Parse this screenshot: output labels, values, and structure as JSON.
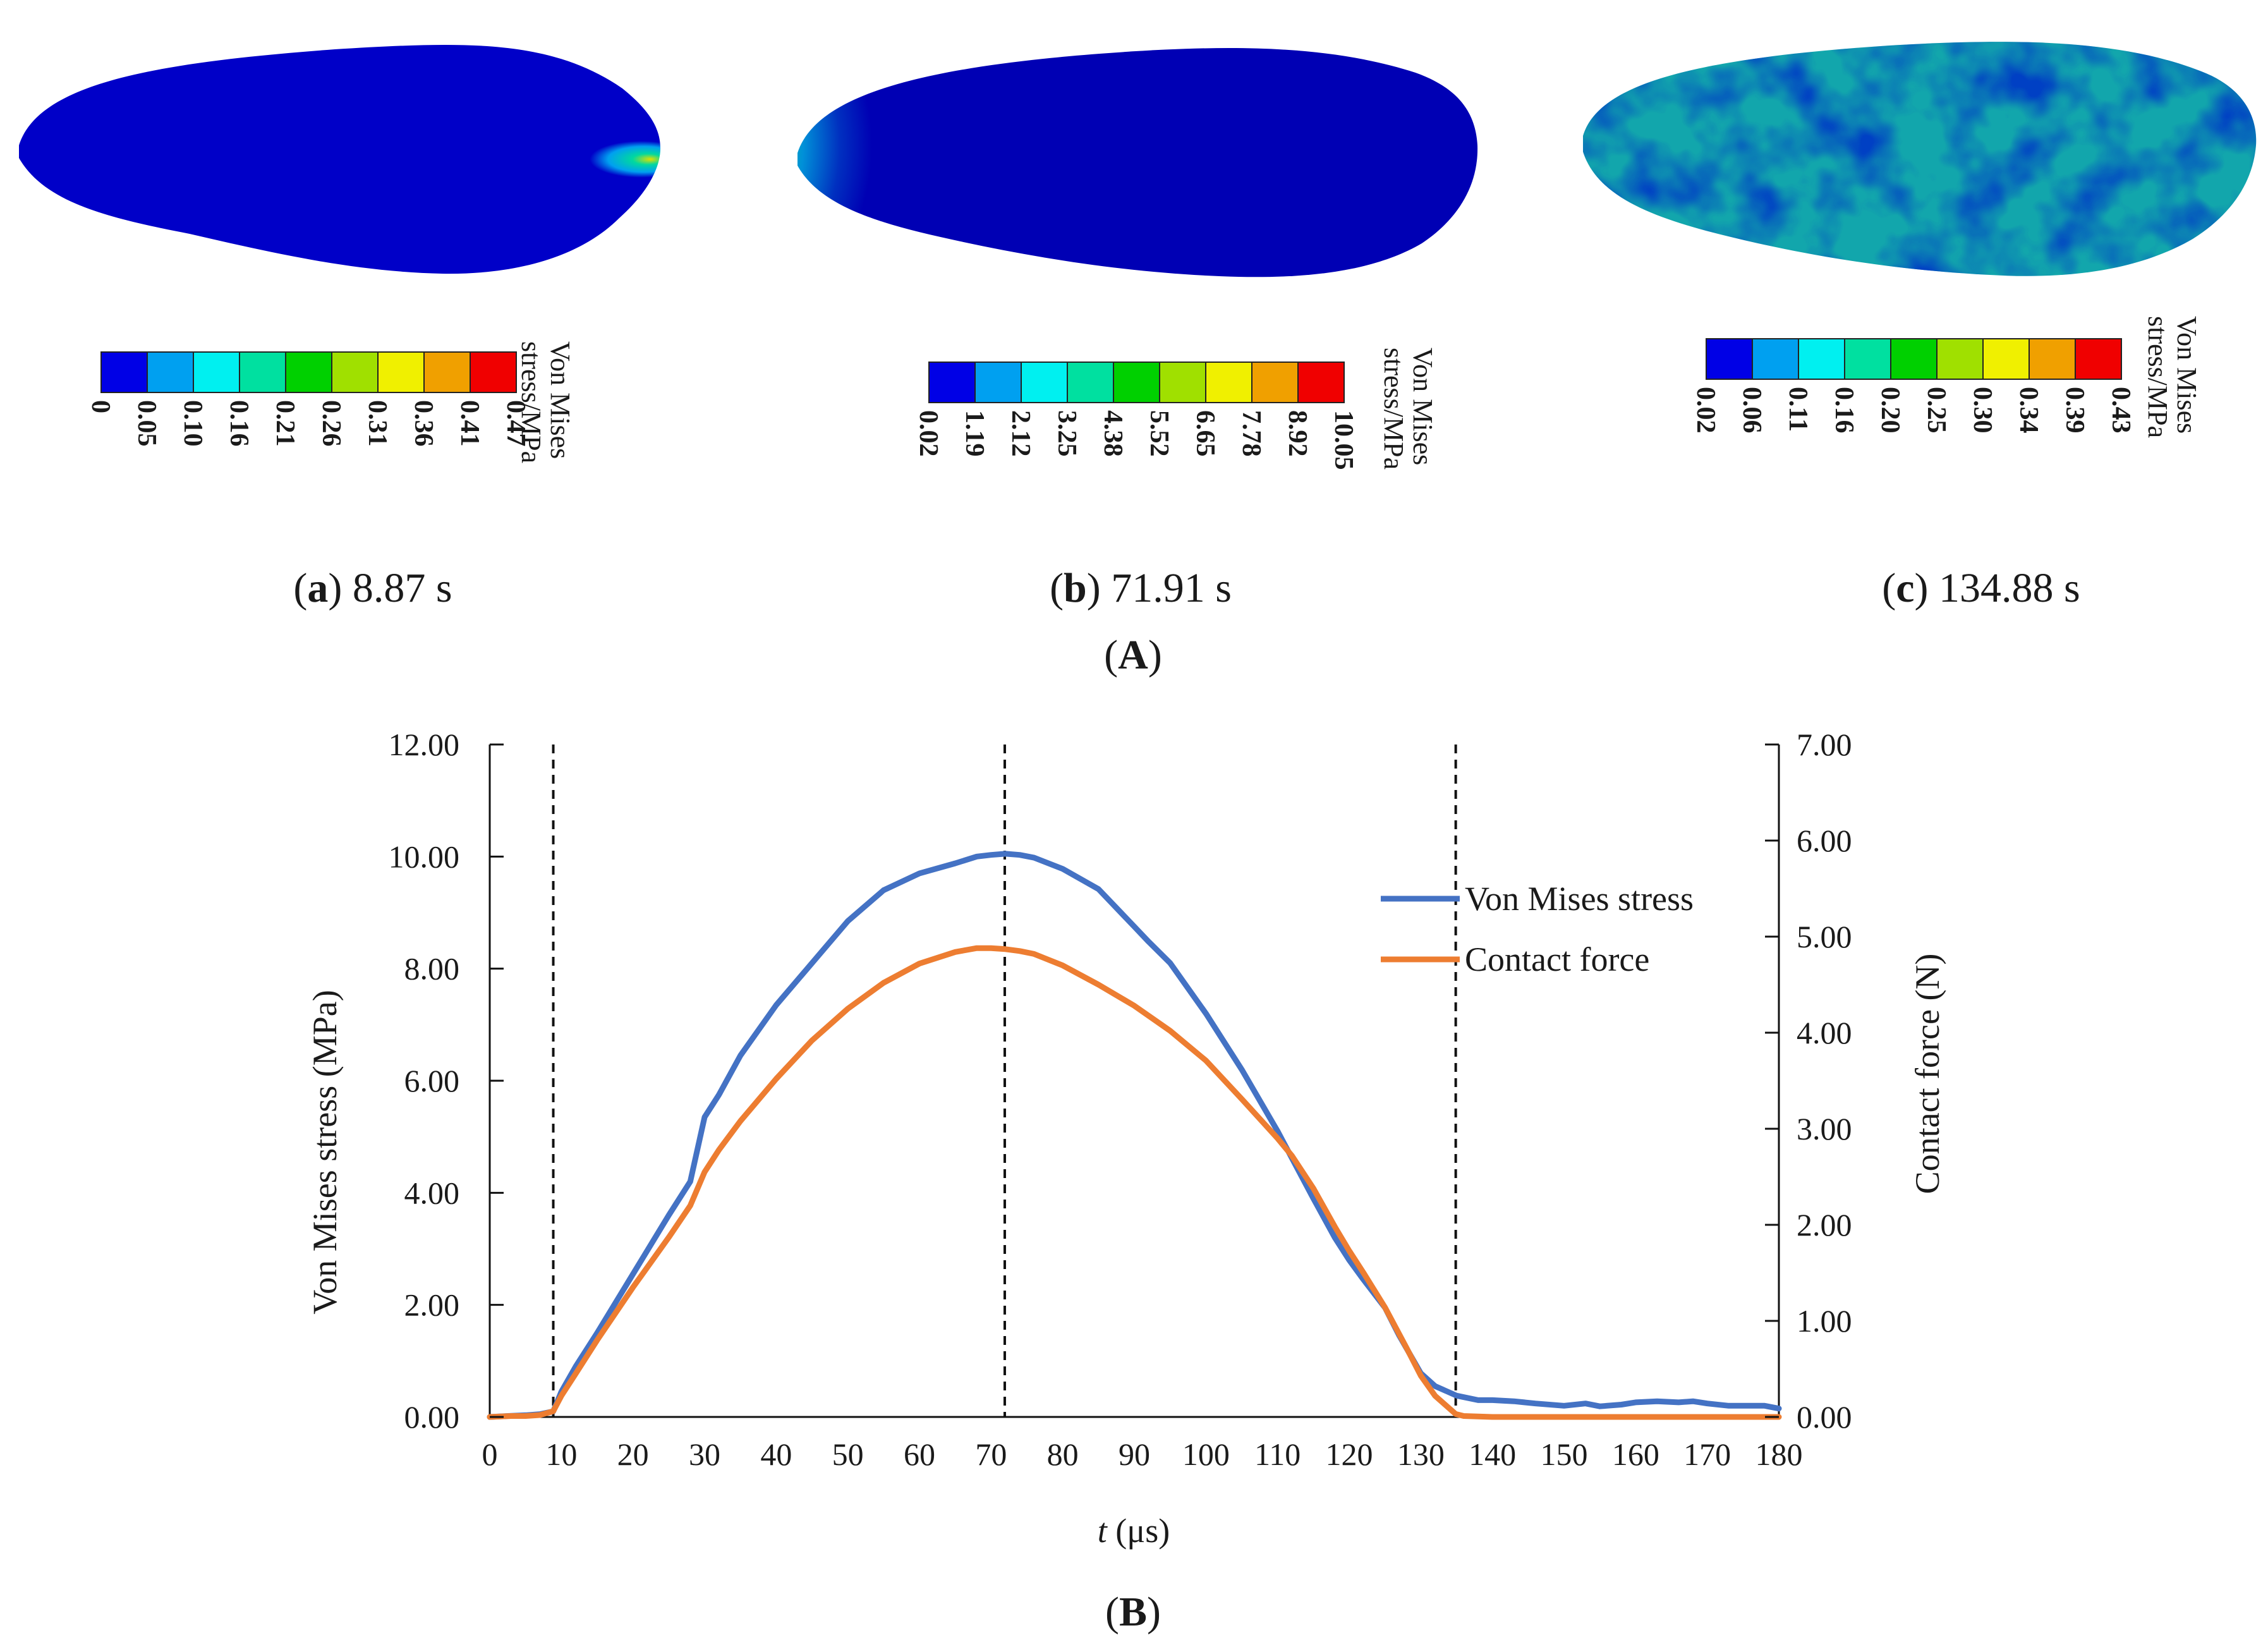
{
  "panel_A": {
    "label": "A",
    "colorbar_title_line1": "Von Mises",
    "colorbar_title_line2": "stress/MPa",
    "colors": [
      "#0000e6",
      "#00a0f0",
      "#00f0f0",
      "#00e0a0",
      "#00d000",
      "#a0e000",
      "#f0f000",
      "#f0a000",
      "#f00000"
    ],
    "subplots": [
      {
        "letter": "a",
        "time": "8.87 s",
        "ticks": [
          "0",
          "0.05",
          "0.10",
          "0.16",
          "0.21",
          "0.26",
          "0.31",
          "0.36",
          "0.41",
          "0.47"
        ]
      },
      {
        "letter": "b",
        "time": "71.91 s",
        "ticks": [
          "0.02",
          "1.19",
          "2.12",
          "3.25",
          "4.38",
          "5.52",
          "6.65",
          "7.78",
          "8.92",
          "10.05"
        ]
      },
      {
        "letter": "c",
        "time": "134.88 s",
        "ticks": [
          "0.02",
          "0.06",
          "0.11",
          "0.16",
          "0.20",
          "0.25",
          "0.30",
          "0.34",
          "0.39",
          "0.43"
        ]
      }
    ]
  },
  "chart_data": {
    "type": "line",
    "panel_label": "B",
    "xlabel_italic": "t",
    "xlabel_rest": " (μs)",
    "ylabel": "Von Mises stress (MPa)",
    "y2label": "Contact force (N)",
    "xlim": [
      0,
      180
    ],
    "ylim": [
      0,
      12
    ],
    "y2lim": [
      0,
      7
    ],
    "xticks": [
      "0",
      "10",
      "20",
      "30",
      "40",
      "50",
      "60",
      "70",
      "80",
      "90",
      "100",
      "110",
      "120",
      "130",
      "140",
      "150",
      "160",
      "170",
      "180"
    ],
    "yticks": [
      "0.00",
      "2.00",
      "4.00",
      "6.00",
      "8.00",
      "10.00",
      "12.00"
    ],
    "y2ticks": [
      "0.00",
      "1.00",
      "2.00",
      "3.00",
      "4.00",
      "5.00",
      "6.00",
      "7.00"
    ],
    "vlines": [
      8.87,
      71.91,
      134.88
    ],
    "series": [
      {
        "name": "Von Mises stress",
        "axis": "left",
        "color": "#4472c4",
        "x": [
          0,
          3,
          5,
          7,
          8.87,
          10,
          12,
          15,
          20,
          25,
          28,
          30,
          32,
          35,
          40,
          45,
          50,
          55,
          60,
          65,
          68,
          70,
          72,
          74,
          76,
          80,
          85,
          90,
          92,
          95,
          100,
          105,
          110,
          115,
          118,
          120,
          122,
          125,
          127,
          130,
          132,
          135,
          138,
          140,
          143,
          146,
          150,
          153,
          155,
          158,
          160,
          163,
          166,
          168,
          170,
          173,
          176,
          178,
          180
        ],
        "y": [
          0,
          0.02,
          0.03,
          0.05,
          0.1,
          0.45,
          0.9,
          1.5,
          2.55,
          3.6,
          4.2,
          5.35,
          5.75,
          6.45,
          7.35,
          8.1,
          8.85,
          9.4,
          9.7,
          9.88,
          10.0,
          10.03,
          10.05,
          10.03,
          9.98,
          9.78,
          9.42,
          8.75,
          8.48,
          8.1,
          7.2,
          6.2,
          5.1,
          3.9,
          3.2,
          2.8,
          2.45,
          1.95,
          1.45,
          0.78,
          0.55,
          0.38,
          0.3,
          0.3,
          0.28,
          0.24,
          0.2,
          0.24,
          0.19,
          0.22,
          0.26,
          0.28,
          0.26,
          0.28,
          0.24,
          0.2,
          0.2,
          0.2,
          0.15
        ]
      },
      {
        "name": "Contact force",
        "axis": "right",
        "color": "#ed7d31",
        "x": [
          0,
          3,
          5,
          7,
          8.87,
          10,
          12,
          15,
          20,
          25,
          28,
          30,
          32,
          35,
          40,
          45,
          50,
          55,
          60,
          65,
          68,
          70,
          72,
          74,
          76,
          80,
          85,
          90,
          95,
          100,
          105,
          110,
          112,
          115,
          118,
          120,
          122,
          125,
          128,
          130,
          132,
          134.88,
          136,
          140,
          150,
          160,
          170,
          180
        ],
        "y": [
          0,
          0.01,
          0.01,
          0.02,
          0.06,
          0.22,
          0.45,
          0.8,
          1.35,
          1.87,
          2.2,
          2.55,
          2.78,
          3.08,
          3.52,
          3.92,
          4.25,
          4.52,
          4.72,
          4.84,
          4.88,
          4.88,
          4.87,
          4.85,
          4.82,
          4.7,
          4.5,
          4.28,
          4.02,
          3.71,
          3.31,
          2.9,
          2.72,
          2.38,
          1.98,
          1.73,
          1.5,
          1.14,
          0.72,
          0.43,
          0.22,
          0.03,
          0.01,
          0,
          0,
          0,
          0,
          0
        ]
      }
    ]
  }
}
